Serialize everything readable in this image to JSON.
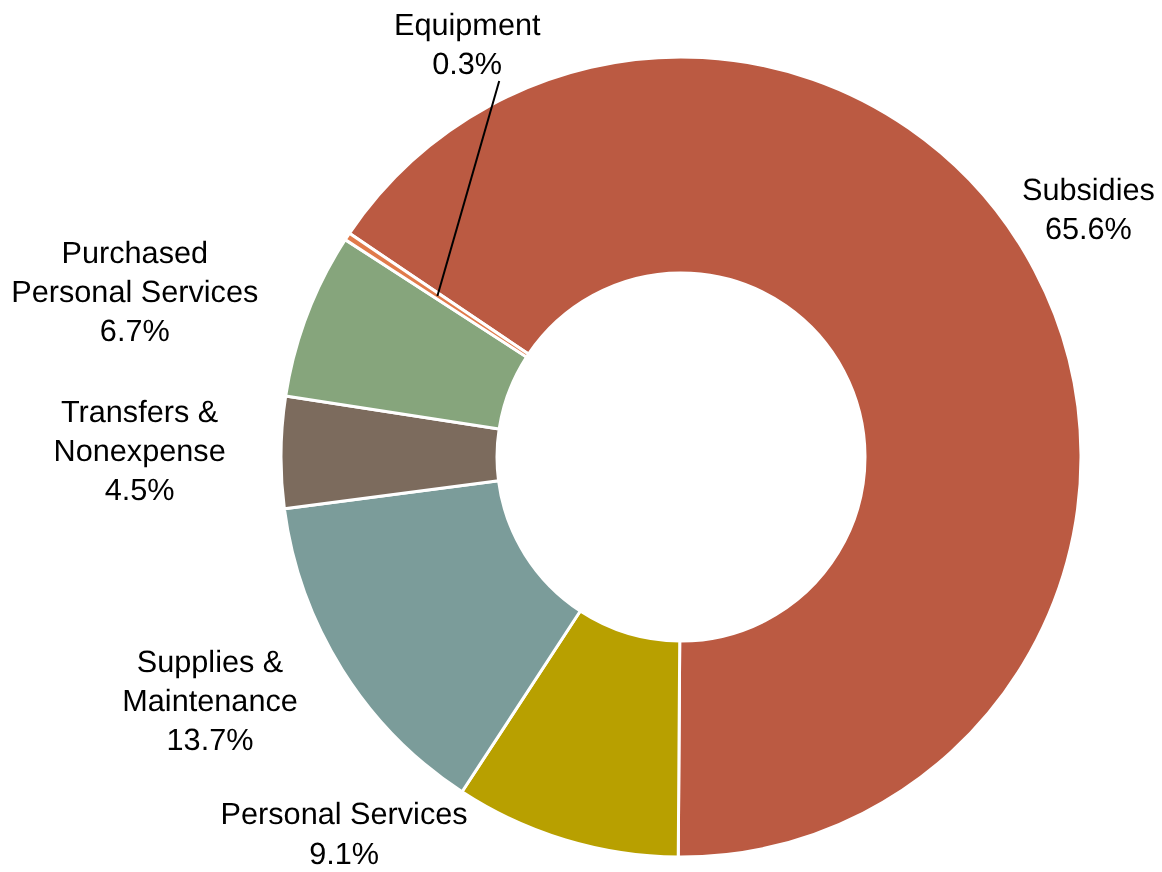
{
  "chart_data": {
    "type": "donut",
    "categories": [
      "Subsidies",
      "Personal Services",
      "Supplies & Maintenance",
      "Transfers & Nonexpense",
      "Purchased Personal Services",
      "Equipment"
    ],
    "values": [
      65.6,
      9.1,
      13.7,
      4.5,
      6.7,
      0.3
    ],
    "colors": [
      "#bb5a42",
      "#b8a000",
      "#7b9c9a",
      "#7c6b5d",
      "#86a57c",
      "#e07a4a"
    ],
    "value_labels": [
      "65.6%",
      "9.1%",
      "13.7%",
      "4.5%",
      "6.7%",
      "0.3%"
    ],
    "legend": false
  }
}
